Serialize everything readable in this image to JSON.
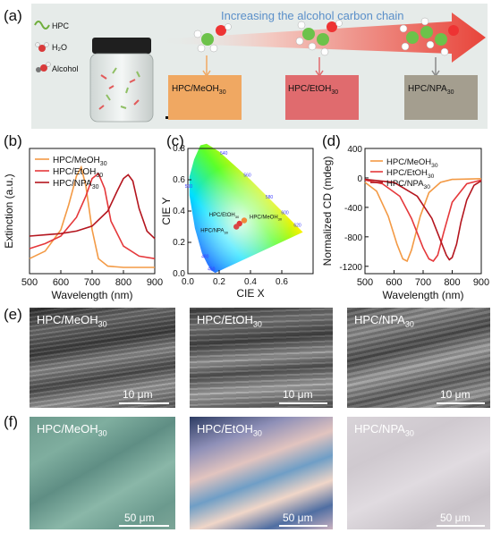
{
  "panel_labels": {
    "a": "(a)",
    "b": "(b)",
    "c": "(c)",
    "d": "(d)",
    "e": "(e)",
    "f": "(f)"
  },
  "panel_a": {
    "arrow_caption": "Increasing the alcohol carbon chain",
    "legend": {
      "hpc": "HPC",
      "h2o": "H₂O",
      "alcohol": "Alcohol"
    },
    "swatches": [
      {
        "label": "HPC/MeOH",
        "sub": "30",
        "color": "#f0a862"
      },
      {
        "label": "HPC/EtOH",
        "sub": "30",
        "color": "#e06b6e"
      },
      {
        "label": "HPC/NPA",
        "sub": "30",
        "color": "#a49e8f"
      }
    ]
  },
  "chart_data": [
    {
      "panel": "b",
      "type": "line",
      "xlabel": "Wavelength (nm)",
      "ylabel": "Extinction (a.u.)",
      "xlim": [
        500,
        900
      ],
      "xticks": [
        500,
        600,
        700,
        800,
        900
      ],
      "series": [
        {
          "name": "HPC/MeOH",
          "sub": "30",
          "color": "#f39a45",
          "x": [
            500,
            550,
            600,
            625,
            650,
            665,
            680,
            700,
            720,
            750,
            800,
            850,
            900
          ],
          "y": [
            0.12,
            0.18,
            0.35,
            0.55,
            0.78,
            0.85,
            0.7,
            0.35,
            0.12,
            0.06,
            0.05,
            0.05,
            0.05
          ]
        },
        {
          "name": "HPC/EtOH",
          "sub": "30",
          "color": "#e5383b",
          "x": [
            500,
            550,
            600,
            650,
            680,
            700,
            720,
            740,
            760,
            800,
            850,
            900
          ],
          "y": [
            0.2,
            0.24,
            0.3,
            0.45,
            0.62,
            0.76,
            0.8,
            0.68,
            0.42,
            0.22,
            0.14,
            0.12
          ]
        },
        {
          "name": "HPC/NPA",
          "sub": "30",
          "color": "#b4151e",
          "x": [
            500,
            550,
            600,
            650,
            700,
            750,
            780,
            800,
            815,
            830,
            850,
            875,
            900
          ],
          "y": [
            0.3,
            0.31,
            0.32,
            0.34,
            0.38,
            0.5,
            0.66,
            0.76,
            0.79,
            0.74,
            0.52,
            0.34,
            0.28
          ]
        }
      ]
    },
    {
      "panel": "c",
      "type": "scatter",
      "xlabel": "CIE X",
      "ylabel": "CIE Y",
      "xlim": [
        0,
        0.8
      ],
      "ylim": [
        0,
        0.8
      ],
      "xticks": [
        0.0,
        0.2,
        0.4,
        0.6
      ],
      "yticks": [
        0.0,
        0.2,
        0.4,
        0.6,
        0.8
      ],
      "wavelength_marks": [
        "520",
        "540",
        "560",
        "580",
        "500",
        "600",
        "620",
        "480",
        "460"
      ],
      "points": [
        {
          "name": "HPC/EtOH",
          "sub": "30",
          "x": 0.33,
          "y": 0.32,
          "color": "#e23a3a"
        },
        {
          "name": "HPC/NPA",
          "sub": "30",
          "x": 0.31,
          "y": 0.3,
          "color": "#d84848"
        },
        {
          "name": "HPC/MeOH",
          "sub": "30",
          "x": 0.36,
          "y": 0.34,
          "color": "#f08a3a"
        }
      ]
    },
    {
      "panel": "d",
      "type": "line",
      "xlabel": "Wavelength (nm)",
      "ylabel": "Normalized CD (mdeg)",
      "xlim": [
        500,
        900
      ],
      "ylim": [
        -1300,
        400
      ],
      "xticks": [
        500,
        600,
        700,
        800,
        900
      ],
      "yticks": [
        400,
        0,
        -400,
        -800,
        -1200
      ],
      "series": [
        {
          "name": "HPC/MeOH",
          "sub": "30",
          "color": "#f39a45",
          "x": [
            500,
            540,
            580,
            610,
            630,
            645,
            660,
            690,
            720,
            760,
            800,
            900
          ],
          "y": [
            -60,
            -180,
            -520,
            -900,
            -1100,
            -1130,
            -980,
            -520,
            -200,
            -60,
            -20,
            -10
          ]
        },
        {
          "name": "HPC/EtOH",
          "sub": "30",
          "color": "#e5383b",
          "x": [
            500,
            560,
            620,
            660,
            700,
            720,
            735,
            750,
            770,
            800,
            850,
            900
          ],
          "y": [
            -30,
            -80,
            -250,
            -550,
            -950,
            -1100,
            -1130,
            -1050,
            -750,
            -330,
            -80,
            -30
          ]
        },
        {
          "name": "HPC/NPA",
          "sub": "30",
          "color": "#b4151e",
          "x": [
            500,
            600,
            680,
            730,
            760,
            780,
            790,
            800,
            815,
            830,
            850,
            875,
            900
          ],
          "y": [
            -20,
            -60,
            -250,
            -550,
            -850,
            -1050,
            -1110,
            -1080,
            -900,
            -600,
            -300,
            -100,
            -40
          ]
        }
      ]
    }
  ],
  "panel_e": {
    "images": [
      {
        "title": "HPC/MeOH",
        "sub": "30",
        "scale": "10 μm"
      },
      {
        "title": "HPC/EtOH",
        "sub": "30",
        "scale": "10 μm"
      },
      {
        "title": "HPC/NPA",
        "sub": "30",
        "scale": "10 μm"
      }
    ]
  },
  "panel_f": {
    "images": [
      {
        "title": "HPC/MeOH",
        "sub": "30",
        "scale": "50 μm"
      },
      {
        "title": "HPC/EtOH",
        "sub": "30",
        "scale": "50 μm"
      },
      {
        "title": "HPC/NPA",
        "sub": "30",
        "scale": "50 μm"
      }
    ]
  }
}
